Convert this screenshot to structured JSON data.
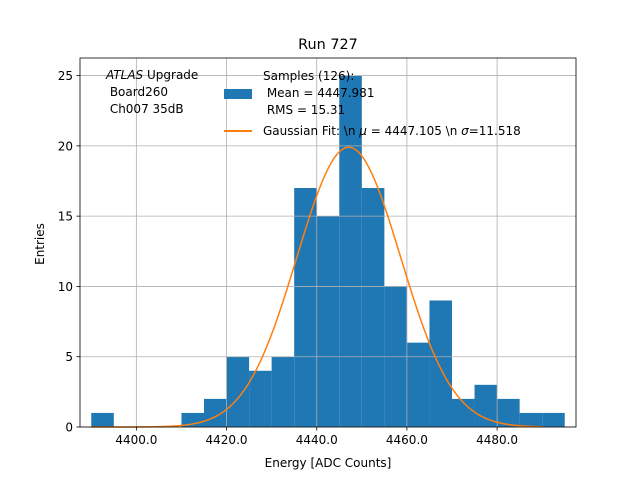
{
  "chart_data": {
    "type": "bar",
    "title": "Run 727",
    "xlabel": "Energy [ADC Counts]",
    "ylabel": "Entries",
    "xlim": [
      4387.5,
      4497.5
    ],
    "ylim": [
      0,
      26.25
    ],
    "xticks": [
      4400,
      4420,
      4440,
      4460,
      4480
    ],
    "xtick_labels": [
      "4400.0",
      "4420.0",
      "4440.0",
      "4460.0",
      "4480.0"
    ],
    "yticks": [
      0,
      5,
      10,
      15,
      20,
      25
    ],
    "ytick_labels": [
      "0",
      "5",
      "10",
      "15",
      "20",
      "25"
    ],
    "grid": true,
    "legend_position": "top-center",
    "annotation": {
      "italic_part": "ATLAS",
      "upright_part": " Upgrade",
      "line2": " Board260",
      "line3": " Ch007 35dB"
    },
    "histogram": {
      "name": "Samples (126):",
      "stats": [
        " Mean = 4447.981",
        " RMS = 15.31"
      ],
      "color": "#1f77b4",
      "bin_width": 5,
      "bins": [
        {
          "left": 4390,
          "count": 1
        },
        {
          "left": 4395,
          "count": 0
        },
        {
          "left": 4400,
          "count": 0
        },
        {
          "left": 4405,
          "count": 0
        },
        {
          "left": 4410,
          "count": 1
        },
        {
          "left": 4415,
          "count": 2
        },
        {
          "left": 4420,
          "count": 5
        },
        {
          "left": 4425,
          "count": 4
        },
        {
          "left": 4430,
          "count": 5
        },
        {
          "left": 4435,
          "count": 17
        },
        {
          "left": 4440,
          "count": 15
        },
        {
          "left": 4445,
          "count": 25
        },
        {
          "left": 4450,
          "count": 17
        },
        {
          "left": 4455,
          "count": 10
        },
        {
          "left": 4460,
          "count": 6
        },
        {
          "left": 4465,
          "count": 9
        },
        {
          "left": 4470,
          "count": 2
        },
        {
          "left": 4475,
          "count": 3
        },
        {
          "left": 4480,
          "count": 2
        },
        {
          "left": 4485,
          "count": 1
        },
        {
          "left": 4490,
          "count": 1
        }
      ]
    },
    "fit": {
      "label_prefix": "Gaussian Fit: \\n ",
      "mu_symbol": "μ",
      "mu_part": " = 4447.105 \\n ",
      "sigma_symbol": "σ",
      "sigma_part": "=11.518",
      "mu": 4447.105,
      "sigma": 11.518,
      "peak": 19.9,
      "x_range": [
        4390,
        4490
      ],
      "color": "#ff7f0e"
    }
  }
}
